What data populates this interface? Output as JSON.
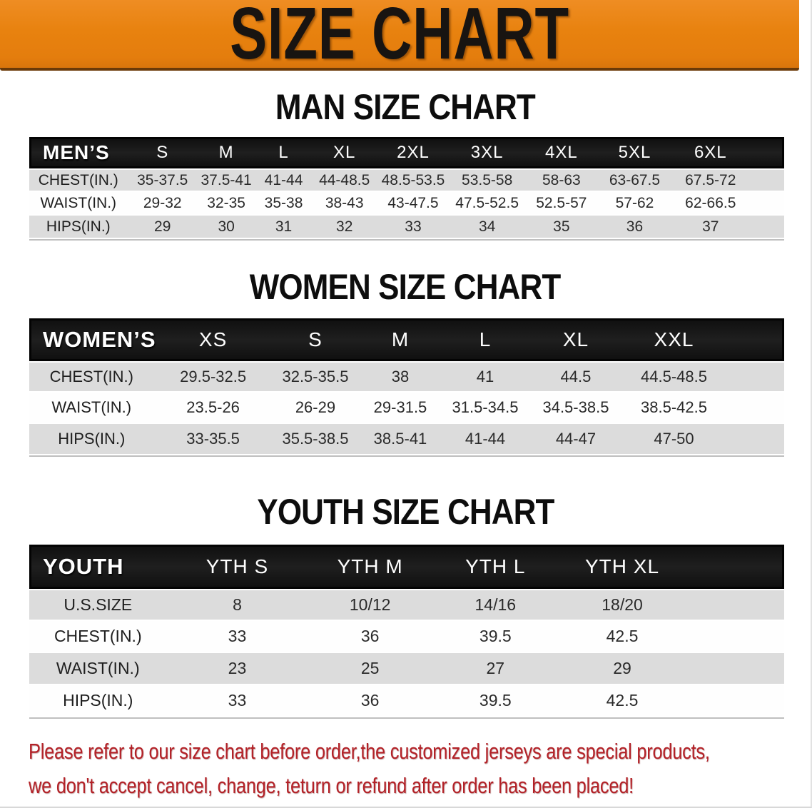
{
  "banner": {
    "title": "SIZE CHART"
  },
  "colors": {
    "banner_orange": "#e8820f",
    "banner_edge_brown": "#6b3a08",
    "header_black": "#161616",
    "row_gray": "#dcdcdc",
    "row_white": "#fefefe",
    "footer_red": "#b32127"
  },
  "sections": [
    {
      "heading": "MAN SIZE CHART",
      "table": {
        "header_label": "MEN’S",
        "sizes": [
          "S",
          "M",
          "L",
          "XL",
          "2XL",
          "3XL",
          "4XL",
          "5XL",
          "6XL"
        ],
        "rows": [
          {
            "label": "CHEST(IN.)",
            "values": [
              "35-37.5",
              "37.5-41",
              "41-44",
              "44-48.5",
              "48.5-53.5",
              "53.5-58",
              "58-63",
              "63-67.5",
              "67.5-72"
            ]
          },
          {
            "label": "WAIST(IN.)",
            "values": [
              "29-32",
              "32-35",
              "35-38",
              "38-43",
              "43-47.5",
              "47.5-52.5",
              "52.5-57",
              "57-62",
              "62-66.5"
            ]
          },
          {
            "label": "HIPS(IN.)",
            "values": [
              "29",
              "30",
              "31",
              "32",
              "33",
              "34",
              "35",
              "36",
              "37"
            ]
          }
        ]
      }
    },
    {
      "heading": "WOMEN SIZE CHART",
      "table": {
        "header_label": "WOMEN’S",
        "sizes": [
          "XS",
          "S",
          "M",
          "L",
          "XL",
          "XXL"
        ],
        "rows": [
          {
            "label": "CHEST(IN.)",
            "values": [
              "29.5-32.5",
              "32.5-35.5",
              "38",
              "41",
              "44.5",
              "44.5-48.5"
            ]
          },
          {
            "label": "WAIST(IN.)",
            "values": [
              "23.5-26",
              "26-29",
              "29-31.5",
              "31.5-34.5",
              "34.5-38.5",
              "38.5-42.5"
            ]
          },
          {
            "label": "HIPS(IN.)",
            "values": [
              "33-35.5",
              "35.5-38.5",
              "38.5-41",
              "41-44",
              "44-47",
              "47-50"
            ]
          }
        ]
      }
    },
    {
      "heading": "YOUTH SIZE CHART",
      "table": {
        "header_label": "YOUTH",
        "sizes": [
          "YTH S",
          "YTH M",
          "YTH L",
          "YTH XL"
        ],
        "rows": [
          {
            "label": "U.S.SIZE",
            "values": [
              "8",
              "10/12",
              "14/16",
              "18/20"
            ]
          },
          {
            "label": "CHEST(IN.)",
            "values": [
              "33",
              "36",
              "39.5",
              "42.5"
            ]
          },
          {
            "label": "WAIST(IN.)",
            "values": [
              "23",
              "25",
              "27",
              "29"
            ]
          },
          {
            "label": "HIPS(IN.)",
            "values": [
              "33",
              "36",
              "39.5",
              "42.5"
            ]
          }
        ]
      }
    }
  ],
  "footer": {
    "line1": "Please refer to our size chart before order,the customized jerseys are special products,",
    "line2": "we don't accept cancel, change, teturn or refund after order has been placed!"
  }
}
